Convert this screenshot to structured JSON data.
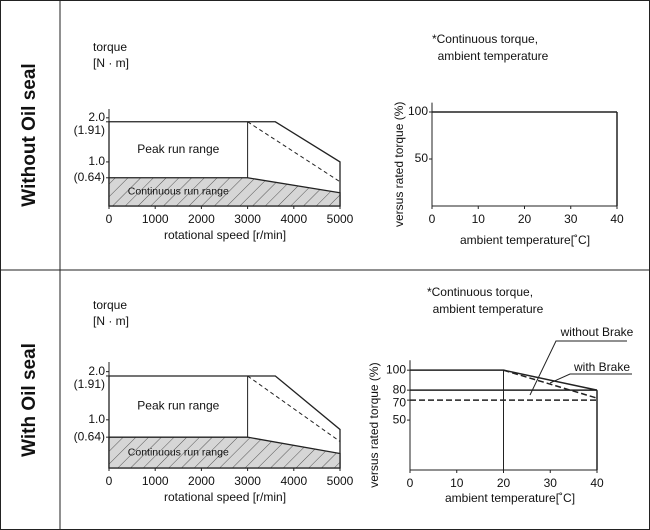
{
  "rows": [
    "Without Oil seal",
    "With Oil seal"
  ],
  "chart_data": [
    {
      "type": "area",
      "ylabel": [
        "torque",
        "[N · m]"
      ],
      "xlabel": "rotational speed [r/min]",
      "xlim": [
        0,
        5000
      ],
      "xticks": [
        0,
        1000,
        2000,
        3000,
        4000,
        5000
      ],
      "ylim": [
        0,
        2.2
      ],
      "yticks": [
        {
          "value": 2,
          "label": "2.0"
        },
        {
          "value": 1.91,
          "label": "(1.91)"
        },
        {
          "value": 1,
          "label": "1.0"
        },
        {
          "value": 0.64,
          "label": "(0.64)"
        }
      ],
      "series": [
        {
          "name": "Peak run range",
          "x": [
            0,
            3000,
            3600,
            5000
          ],
          "values": [
            1.91,
            1.91,
            1.91,
            1.0
          ],
          "fill": "#ffffff"
        },
        {
          "name": "Continuous run range",
          "x": [
            0,
            3000,
            5000
          ],
          "values": [
            0.64,
            0.64,
            0.3
          ],
          "fill": "hatch"
        },
        {
          "x": [
            3000,
            5000
          ],
          "values": [
            1.91,
            0.55
          ],
          "dash": true
        }
      ]
    },
    {
      "type": "line",
      "title": [
        "*Continuous torque,",
        "ambient temperature"
      ],
      "ylabel": "versus rated torque (%)",
      "xlabel": "ambient temperature[˚C]",
      "xlim": [
        0,
        40
      ],
      "xticks": [
        0,
        10,
        20,
        30,
        40
      ],
      "ylim": [
        0,
        110
      ],
      "yticks": [
        100,
        50
      ],
      "series": [
        {
          "x": [
            0,
            40
          ],
          "values": [
            100,
            100
          ],
          "dash": false
        }
      ]
    },
    {
      "type": "area",
      "ylabel": [
        "torque",
        "[N · m]"
      ],
      "xlabel": "rotational speed [r/min]",
      "xlim": [
        0,
        5000
      ],
      "xticks": [
        0,
        1000,
        2000,
        3000,
        4000,
        5000
      ],
      "ylim": [
        0,
        2.2
      ],
      "yticks": [
        {
          "value": 2,
          "label": "2.0"
        },
        {
          "value": 1.91,
          "label": "(1.91)"
        },
        {
          "value": 1,
          "label": "1.0"
        },
        {
          "value": 0.64,
          "label": "(0.64)"
        }
      ],
      "series": [
        {
          "name": "Peak run range",
          "x": [
            0,
            3000,
            3600,
            5000
          ],
          "values": [
            1.91,
            1.91,
            1.91,
            0.8
          ],
          "fill": "#ffffff"
        },
        {
          "name": "Continuous run range",
          "x": [
            0,
            3000,
            5000
          ],
          "values": [
            0.64,
            0.64,
            0.3
          ],
          "fill": "hatch"
        },
        {
          "x": [
            3000,
            5000
          ],
          "values": [
            1.91,
            0.55
          ],
          "dash": true
        }
      ]
    },
    {
      "type": "line",
      "title": [
        "*Continuous torque,",
        "ambient temperature"
      ],
      "ylabel": "versus rated torque (%)",
      "xlabel": "ambient temperature[˚C]",
      "xlim": [
        0,
        40
      ],
      "xticks": [
        0,
        10,
        20,
        30,
        40
      ],
      "ylim": [
        0,
        110
      ],
      "yticks": [
        100,
        80,
        70,
        50
      ],
      "series": [
        {
          "name": "without Brake",
          "x": [
            0,
            20,
            40
          ],
          "values": [
            100,
            100,
            80
          ],
          "dash": false
        },
        {
          "name": "with Brake",
          "x": [
            20,
            40
          ],
          "values": [
            100,
            72
          ],
          "dash": true
        },
        {
          "x": [
            0,
            40
          ],
          "values": [
            80,
            80
          ],
          "dash": false
        },
        {
          "x": [
            0,
            40
          ],
          "values": [
            70,
            70
          ],
          "dash": true
        }
      ]
    }
  ]
}
